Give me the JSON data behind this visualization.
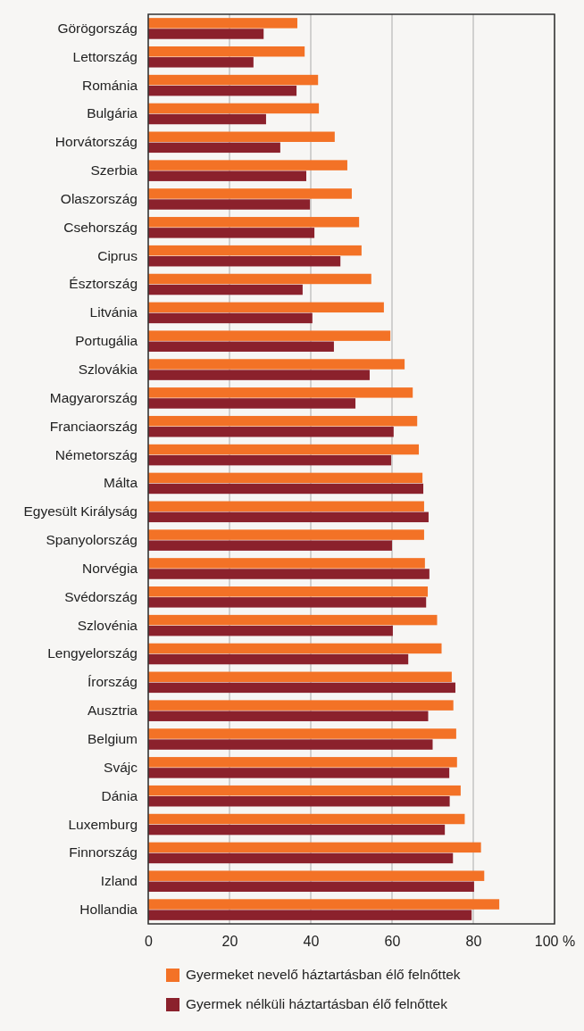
{
  "chart_data": {
    "type": "bar",
    "orientation": "horizontal",
    "categories": [
      "Görögország",
      "Lettország",
      "Románia",
      "Bulgária",
      "Horvátország",
      "Szerbia",
      "Olaszország",
      "Csehország",
      "Ciprus",
      "Észtország",
      "Litvánia",
      "Portugália",
      "Szlovákia",
      "Magyarország",
      "Franciaország",
      "Németország",
      "Málta",
      "Egyesült Királyság",
      "Spanyolország",
      "Norvégia",
      "Svédország",
      "Szlovénia",
      "Lengyelország",
      "Írország",
      "Ausztria",
      "Belgium",
      "Svájc",
      "Dánia",
      "Luxemburg",
      "Finnország",
      "Izland",
      "Hollandia"
    ],
    "series": [
      {
        "name": "Gyermeket nevelő háztartásban élő felnőttek",
        "color": "#f37226",
        "values": [
          36.7,
          38.5,
          41.8,
          42.0,
          45.9,
          49.0,
          50.1,
          51.9,
          52.5,
          54.9,
          58.0,
          59.6,
          63.1,
          65.1,
          66.2,
          66.6,
          67.5,
          67.9,
          67.9,
          68.1,
          68.8,
          71.1,
          72.2,
          74.7,
          75.1,
          75.8,
          76.0,
          76.9,
          77.9,
          81.9,
          82.7,
          86.4
        ]
      },
      {
        "name": "Gyermek nélküli háztartásban élő felnőttek",
        "color": "#8b212c",
        "values": [
          28.4,
          25.9,
          36.5,
          29.0,
          32.5,
          38.9,
          39.8,
          40.9,
          47.3,
          38.0,
          40.4,
          45.7,
          54.5,
          51.0,
          60.4,
          59.8,
          67.7,
          69.0,
          60.0,
          69.2,
          68.4,
          60.2,
          64.0,
          75.6,
          68.9,
          70.0,
          74.1,
          74.2,
          73.0,
          75.0,
          80.2,
          79.6
        ]
      }
    ],
    "xlim": [
      0,
      100
    ],
    "xticks": [
      0,
      20,
      40,
      60,
      80,
      {
        "value": 100,
        "label": "100 %"
      }
    ],
    "grid": "x",
    "legend": "bottom"
  }
}
